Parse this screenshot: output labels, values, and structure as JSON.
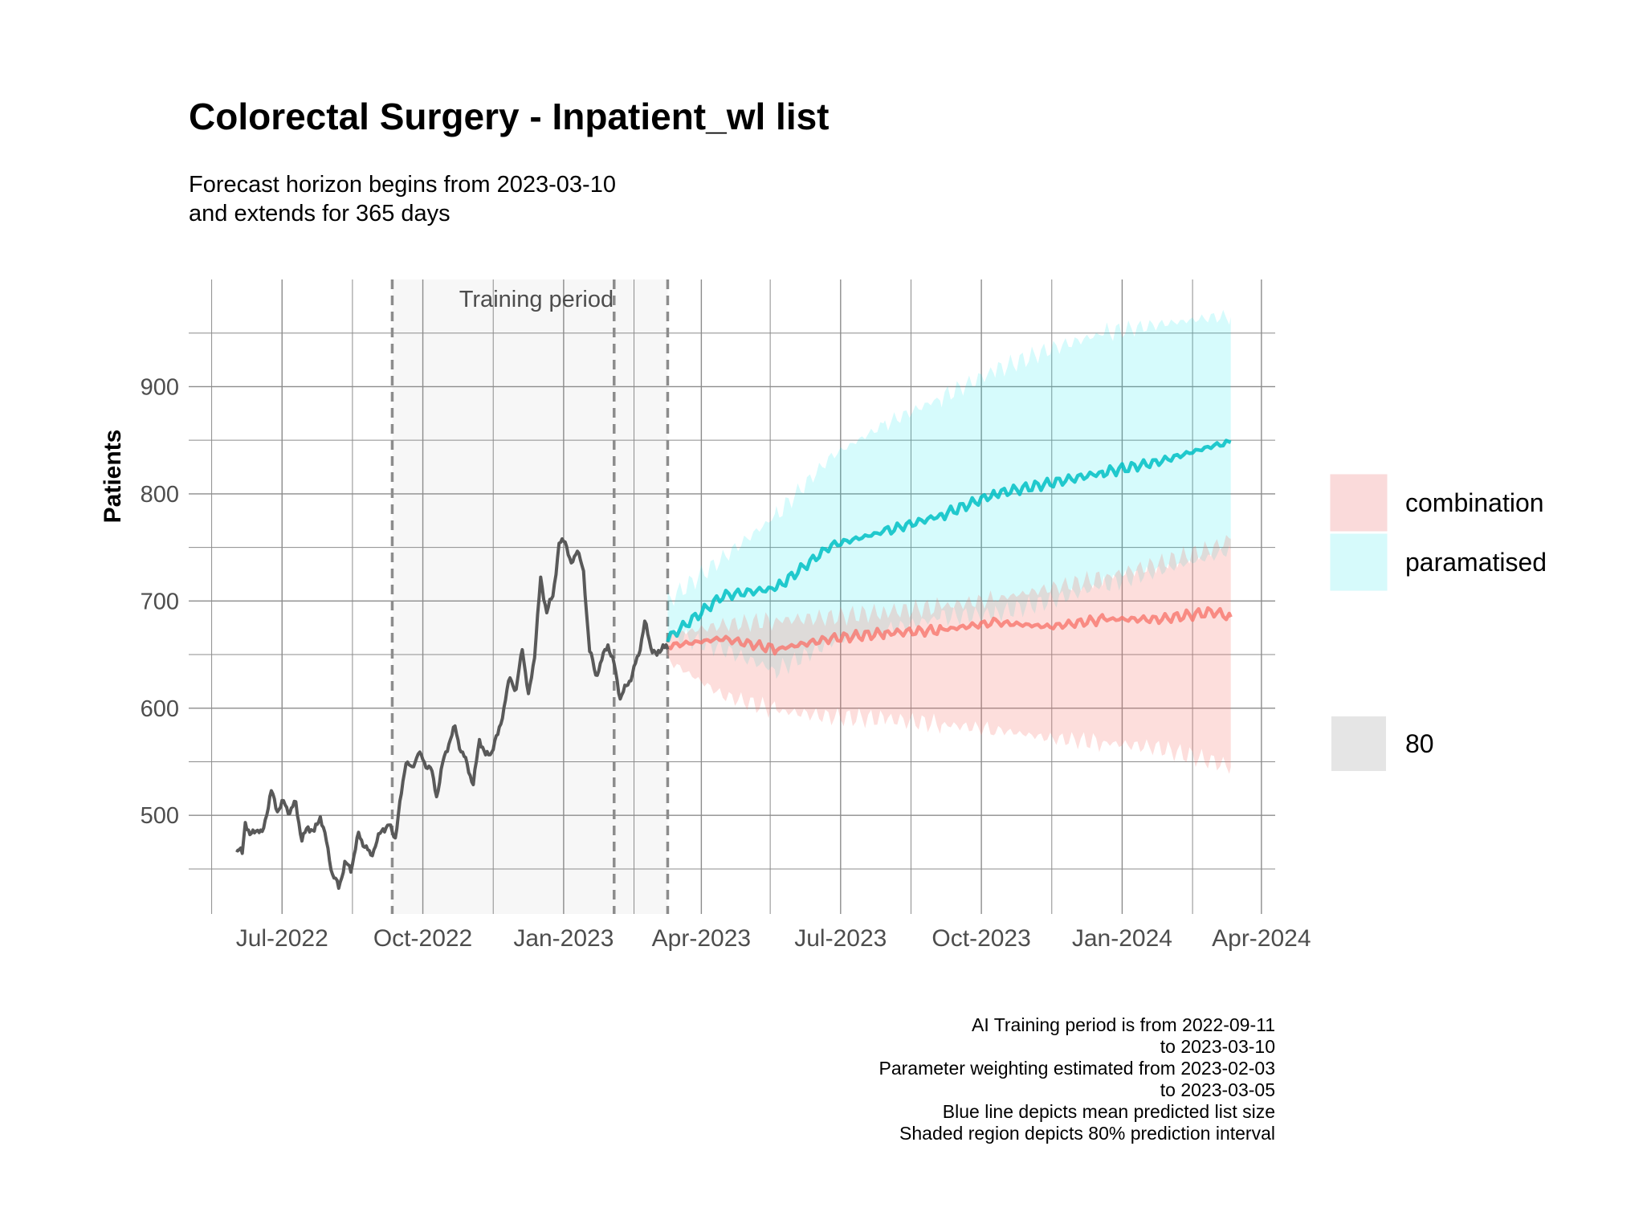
{
  "chart_data": {
    "type": "line",
    "title": "Colorectal Surgery - Inpatient_wl list",
    "subtitle": [
      "Forecast horizon begins from 2023-03-10",
      "and extends for 365 days"
    ],
    "xlabel": "",
    "ylabel": "Patients",
    "x_tick_labels": [
      "Jul-2022",
      "Oct-2022",
      "Jan-2023",
      "Apr-2023",
      "Jul-2023",
      "Oct-2023",
      "Jan-2024",
      "Apr-2024"
    ],
    "y_ticks": [
      500,
      600,
      700,
      800,
      900
    ],
    "xlim": [
      "2022-05-01",
      "2024-04-10"
    ],
    "ylim": [
      408,
      1000
    ],
    "grid": true,
    "training_period": {
      "label": "Training period",
      "start": "2022-09-11",
      "end": "2023-03-10"
    },
    "vlines": [
      "2022-09-11",
      "2023-02-03",
      "2023-03-10"
    ],
    "history": {
      "name": "",
      "color": "#595959",
      "points": [
        [
          "2022-06-01",
          468
        ],
        [
          "2022-06-05",
          465
        ],
        [
          "2022-06-07",
          495
        ],
        [
          "2022-06-10",
          480
        ],
        [
          "2022-06-14",
          488
        ],
        [
          "2022-06-18",
          482
        ],
        [
          "2022-06-21",
          503
        ],
        [
          "2022-06-24",
          522
        ],
        [
          "2022-06-28",
          505
        ],
        [
          "2022-07-02",
          512
        ],
        [
          "2022-07-06",
          503
        ],
        [
          "2022-07-10",
          512
        ],
        [
          "2022-07-14",
          476
        ],
        [
          "2022-07-18",
          490
        ],
        [
          "2022-07-22",
          484
        ],
        [
          "2022-07-26",
          500
        ],
        [
          "2022-07-30",
          475
        ],
        [
          "2022-08-03",
          445
        ],
        [
          "2022-08-07",
          433
        ],
        [
          "2022-08-11",
          455
        ],
        [
          "2022-08-15",
          450
        ],
        [
          "2022-08-20",
          482
        ],
        [
          "2022-08-24",
          472
        ],
        [
          "2022-08-28",
          462
        ],
        [
          "2022-09-01",
          476
        ],
        [
          "2022-09-05",
          488
        ],
        [
          "2022-09-09",
          490
        ],
        [
          "2022-09-13",
          480
        ],
        [
          "2022-09-17",
          520
        ],
        [
          "2022-09-20",
          552
        ],
        [
          "2022-09-24",
          542
        ],
        [
          "2022-09-28",
          560
        ],
        [
          "2022-10-02",
          548
        ],
        [
          "2022-10-06",
          545
        ],
        [
          "2022-10-10",
          518
        ],
        [
          "2022-10-14",
          548
        ],
        [
          "2022-10-18",
          568
        ],
        [
          "2022-10-22",
          582
        ],
        [
          "2022-10-26",
          560
        ],
        [
          "2022-10-30",
          548
        ],
        [
          "2022-11-03",
          528
        ],
        [
          "2022-11-07",
          572
        ],
        [
          "2022-11-11",
          555
        ],
        [
          "2022-11-15",
          560
        ],
        [
          "2022-11-19",
          575
        ],
        [
          "2022-11-23",
          600
        ],
        [
          "2022-11-27",
          630
        ],
        [
          "2022-12-01",
          615
        ],
        [
          "2022-12-05",
          658
        ],
        [
          "2022-12-09",
          610
        ],
        [
          "2022-12-13",
          650
        ],
        [
          "2022-12-17",
          720
        ],
        [
          "2022-12-21",
          690
        ],
        [
          "2022-12-25",
          705
        ],
        [
          "2022-12-29",
          752
        ],
        [
          "2023-01-02",
          758
        ],
        [
          "2023-01-06",
          732
        ],
        [
          "2023-01-10",
          750
        ],
        [
          "2023-01-14",
          725
        ],
        [
          "2023-01-18",
          655
        ],
        [
          "2023-01-22",
          630
        ],
        [
          "2023-01-26",
          645
        ],
        [
          "2023-01-30",
          660
        ],
        [
          "2023-02-03",
          640
        ],
        [
          "2023-02-07",
          610
        ],
        [
          "2023-02-11",
          620
        ],
        [
          "2023-02-15",
          632
        ],
        [
          "2023-02-19",
          650
        ],
        [
          "2023-02-23",
          680
        ],
        [
          "2023-02-27",
          658
        ],
        [
          "2023-03-03",
          648
        ],
        [
          "2023-03-07",
          660
        ],
        [
          "2023-03-10",
          655
        ]
      ]
    },
    "series": [
      {
        "name": "combination",
        "color": "#F8766D",
        "band_color": "#F8766D",
        "mean": [
          [
            "2023-03-10",
            658
          ],
          [
            "2023-04-15",
            665
          ],
          [
            "2023-05-20",
            655
          ],
          [
            "2023-06-25",
            665
          ],
          [
            "2023-07-30",
            670
          ],
          [
            "2023-09-05",
            673
          ],
          [
            "2023-10-10",
            680
          ],
          [
            "2023-11-15",
            676
          ],
          [
            "2023-12-20",
            683
          ],
          [
            "2024-01-25",
            683
          ],
          [
            "2024-03-01",
            690
          ],
          [
            "2024-03-12",
            685
          ]
        ],
        "lower": [
          [
            "2023-03-10",
            645
          ],
          [
            "2023-04-15",
            612
          ],
          [
            "2023-05-20",
            598
          ],
          [
            "2023-06-25",
            592
          ],
          [
            "2023-07-30",
            590
          ],
          [
            "2023-09-05",
            585
          ],
          [
            "2023-10-10",
            580
          ],
          [
            "2023-11-15",
            572
          ],
          [
            "2023-12-20",
            568
          ],
          [
            "2024-01-25",
            563
          ],
          [
            "2024-03-01",
            550
          ],
          [
            "2024-03-12",
            545
          ]
        ],
        "upper": [
          [
            "2023-03-10",
            668
          ],
          [
            "2023-04-15",
            678
          ],
          [
            "2023-05-20",
            682
          ],
          [
            "2023-06-25",
            685
          ],
          [
            "2023-07-30",
            690
          ],
          [
            "2023-09-05",
            695
          ],
          [
            "2023-10-10",
            702
          ],
          [
            "2023-11-15",
            712
          ],
          [
            "2023-12-20",
            722
          ],
          [
            "2024-01-25",
            735
          ],
          [
            "2024-03-01",
            750
          ],
          [
            "2024-03-12",
            758
          ]
        ]
      },
      {
        "name": "paramatised",
        "color": "#00BFC4",
        "band_color": "#00E5EE",
        "mean": [
          [
            "2023-03-10",
            665
          ],
          [
            "2023-04-15",
            705
          ],
          [
            "2023-05-20",
            712
          ],
          [
            "2023-06-25",
            752
          ],
          [
            "2023-07-30",
            765
          ],
          [
            "2023-09-05",
            780
          ],
          [
            "2023-10-10",
            800
          ],
          [
            "2023-11-15",
            810
          ],
          [
            "2023-12-20",
            820
          ],
          [
            "2024-01-25",
            830
          ],
          [
            "2024-03-01",
            845
          ],
          [
            "2024-03-12",
            848
          ]
        ],
        "lower": [
          [
            "2023-03-10",
            670
          ],
          [
            "2023-04-15",
            655
          ],
          [
            "2023-05-20",
            635
          ],
          [
            "2023-06-25",
            662
          ],
          [
            "2023-07-30",
            672
          ],
          [
            "2023-09-05",
            685
          ],
          [
            "2023-10-10",
            688
          ],
          [
            "2023-11-15",
            700
          ],
          [
            "2023-12-20",
            715
          ],
          [
            "2024-01-25",
            728
          ],
          [
            "2024-03-01",
            742
          ],
          [
            "2024-03-12",
            748
          ]
        ],
        "upper": [
          [
            "2023-03-10",
            700
          ],
          [
            "2023-04-15",
            740
          ],
          [
            "2023-05-20",
            780
          ],
          [
            "2023-06-25",
            835
          ],
          [
            "2023-07-30",
            865
          ],
          [
            "2023-09-05",
            890
          ],
          [
            "2023-10-10",
            915
          ],
          [
            "2023-11-15",
            935
          ],
          [
            "2023-12-20",
            950
          ],
          [
            "2024-01-25",
            958
          ],
          [
            "2024-03-01",
            965
          ],
          [
            "2024-03-12",
            965
          ]
        ]
      }
    ],
    "legend": {
      "position": "right",
      "items": [
        {
          "label": "combination",
          "fill": "#FADADA",
          "border": "#FADADA"
        },
        {
          "label": "paramatised",
          "fill": "#D6FAFB",
          "border": "#D6FAFB"
        }
      ],
      "level_items": [
        {
          "label": "80",
          "fill": "#E5E5E5"
        }
      ]
    },
    "caption": [
      "AI Training period is from 2022-09-11",
      "to 2023-03-10",
      "Parameter weighting estimated from 2023-02-03",
      "to 2023-03-05",
      "Blue line depicts mean predicted list size",
      "Shaded region depicts 80% prediction interval"
    ]
  }
}
